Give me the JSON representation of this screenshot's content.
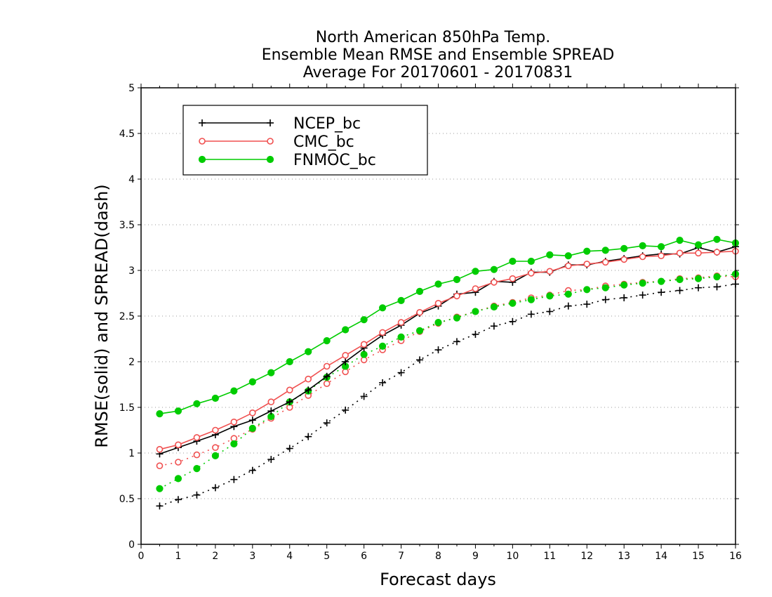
{
  "chart_data": {
    "type": "line",
    "title_lines": [
      "North American 850hPa Temp.",
      "Ensemble Mean RMSE and Ensemble SPREAD",
      "Average For 20170601 - 20170831"
    ],
    "xlabel": "Forecast days",
    "ylabel": "RMSE(solid) and SPREAD(dash)",
    "xlim": [
      0,
      16
    ],
    "ylim": [
      0,
      5
    ],
    "xticks": [
      "0",
      "1",
      "2",
      "3",
      "4",
      "5",
      "6",
      "7",
      "8",
      "9",
      "10",
      "11",
      "12",
      "13",
      "14",
      "15",
      "16"
    ],
    "yticks": [
      "0",
      "0.5",
      "1",
      "1.5",
      "2",
      "2.5",
      "3",
      "3.5",
      "4",
      "4.5",
      "5"
    ],
    "grid": "horizontal dotted",
    "legend_position": "top-left",
    "x": [
      0.5,
      1,
      1.5,
      2,
      2.5,
      3,
      3.5,
      4,
      4.5,
      5,
      5.5,
      6,
      6.5,
      7,
      7.5,
      8,
      8.5,
      9,
      9.5,
      10,
      10.5,
      11,
      11.5,
      12,
      12.5,
      13,
      13.5,
      14,
      14.5,
      15,
      15.5,
      16
    ],
    "series": [
      {
        "name": "NCEP_bc",
        "color": "#000000",
        "marker": "plus",
        "rmse": [
          0.99,
          1.06,
          1.13,
          1.2,
          1.29,
          1.36,
          1.46,
          1.56,
          1.69,
          1.84,
          2.0,
          2.15,
          2.29,
          2.4,
          2.53,
          2.61,
          2.74,
          2.76,
          2.88,
          2.87,
          2.98,
          2.98,
          3.06,
          3.06,
          3.1,
          3.13,
          3.16,
          3.18,
          3.18,
          3.25,
          3.2,
          3.26
        ],
        "spread": [
          0.42,
          0.49,
          0.54,
          0.62,
          0.71,
          0.81,
          0.93,
          1.05,
          1.18,
          1.33,
          1.47,
          1.62,
          1.77,
          1.88,
          2.02,
          2.13,
          2.22,
          2.3,
          2.39,
          2.44,
          2.52,
          2.55,
          2.61,
          2.63,
          2.68,
          2.7,
          2.73,
          2.76,
          2.78,
          2.81,
          2.82,
          2.85
        ]
      },
      {
        "name": "CMC_bc",
        "color": "#f05050",
        "marker": "open-circle",
        "rmse": [
          1.04,
          1.09,
          1.17,
          1.25,
          1.34,
          1.44,
          1.56,
          1.69,
          1.81,
          1.95,
          2.07,
          2.19,
          2.32,
          2.43,
          2.54,
          2.64,
          2.72,
          2.8,
          2.87,
          2.91,
          2.97,
          2.99,
          3.05,
          3.07,
          3.09,
          3.12,
          3.15,
          3.16,
          3.19,
          3.19,
          3.2,
          3.21
        ],
        "spread": [
          0.86,
          0.9,
          0.98,
          1.06,
          1.16,
          1.26,
          1.38,
          1.5,
          1.63,
          1.76,
          1.89,
          2.02,
          2.13,
          2.23,
          2.33,
          2.42,
          2.49,
          2.55,
          2.61,
          2.65,
          2.7,
          2.73,
          2.78,
          2.79,
          2.83,
          2.85,
          2.87,
          2.88,
          2.91,
          2.92,
          2.94,
          2.93
        ]
      },
      {
        "name": "FNMOC_bc",
        "color": "#00cc00",
        "marker": "filled-circle",
        "rmse": [
          1.43,
          1.46,
          1.54,
          1.6,
          1.68,
          1.78,
          1.88,
          2.0,
          2.11,
          2.23,
          2.35,
          2.46,
          2.59,
          2.67,
          2.77,
          2.85,
          2.9,
          2.99,
          3.01,
          3.1,
          3.1,
          3.17,
          3.16,
          3.21,
          3.22,
          3.24,
          3.27,
          3.26,
          3.33,
          3.28,
          3.34,
          3.3
        ],
        "spread": [
          0.61,
          0.72,
          0.83,
          0.97,
          1.1,
          1.27,
          1.4,
          1.56,
          1.68,
          1.83,
          1.95,
          2.08,
          2.17,
          2.27,
          2.34,
          2.43,
          2.48,
          2.55,
          2.6,
          2.64,
          2.68,
          2.72,
          2.74,
          2.79,
          2.81,
          2.84,
          2.86,
          2.88,
          2.9,
          2.91,
          2.93,
          2.96
        ]
      }
    ]
  }
}
